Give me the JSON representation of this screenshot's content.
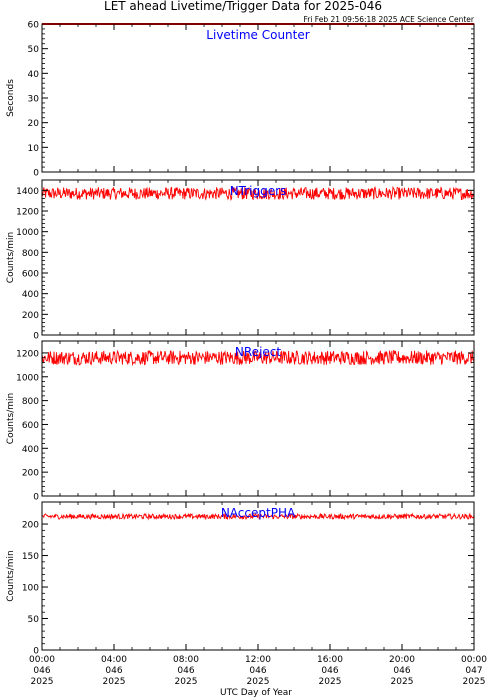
{
  "title": "LET ahead Livetime/Trigger Data for 2025-046",
  "timestamp": "Fri Feb 21 09:56:18 2025 ACE Science Center",
  "xlabel": "UTC Day of Year",
  "colors": {
    "line": "#ff0000",
    "label": "#0000ff",
    "axis": "#000000"
  },
  "chart_data": [
    {
      "type": "line",
      "name": "Livetime Counter",
      "ylabel": "Seconds",
      "ylim": [
        0,
        60
      ],
      "yticks": [
        "0",
        "10",
        "20",
        "30",
        "40",
        "50",
        "60"
      ],
      "ytick_values": [
        0,
        10,
        20,
        30,
        40,
        50,
        60
      ],
      "series": [
        {
          "name": "Livetime Counter",
          "level": 60,
          "noise": 0
        }
      ]
    },
    {
      "type": "line",
      "name": "NTriggers",
      "ylabel": "Counts/min",
      "ylim": [
        0,
        1500
      ],
      "yticks": [
        "0",
        "200",
        "400",
        "600",
        "800",
        "1000",
        "1200",
        "1400"
      ],
      "ytick_values": [
        0,
        200,
        400,
        600,
        800,
        1000,
        1200,
        1400
      ],
      "series": [
        {
          "name": "NTriggers",
          "level": 1370,
          "noise": 60
        }
      ]
    },
    {
      "type": "line",
      "name": "NReject",
      "ylabel": "Counts/min",
      "ylim": [
        0,
        1300
      ],
      "yticks": [
        "0",
        "200",
        "400",
        "600",
        "800",
        "1000",
        "1200"
      ],
      "ytick_values": [
        0,
        200,
        400,
        600,
        800,
        1000,
        1200
      ],
      "series": [
        {
          "name": "NReject",
          "level": 1160,
          "noise": 60
        }
      ]
    },
    {
      "type": "line",
      "name": "NAcceptPHA",
      "ylabel": "Counts/min",
      "ylim": [
        0,
        235
      ],
      "yticks": [
        "0",
        "50",
        "100",
        "150",
        "200"
      ],
      "ytick_values": [
        0,
        50,
        100,
        150,
        200
      ],
      "series": [
        {
          "name": "NAcceptPHA",
          "level": 212,
          "noise": 4
        }
      ]
    }
  ],
  "xticks": [
    {
      "time": "00:00",
      "doy": "046",
      "year": "2025"
    },
    {
      "time": "04:00",
      "doy": "046",
      "year": "2025"
    },
    {
      "time": "08:00",
      "doy": "046",
      "year": "2025"
    },
    {
      "time": "12:00",
      "doy": "046",
      "year": "2025"
    },
    {
      "time": "16:00",
      "doy": "046",
      "year": "2025"
    },
    {
      "time": "20:00",
      "doy": "046",
      "year": "2025"
    },
    {
      "time": "00:00",
      "doy": "047",
      "year": "2025"
    }
  ],
  "x_range_hours": [
    0,
    24
  ]
}
